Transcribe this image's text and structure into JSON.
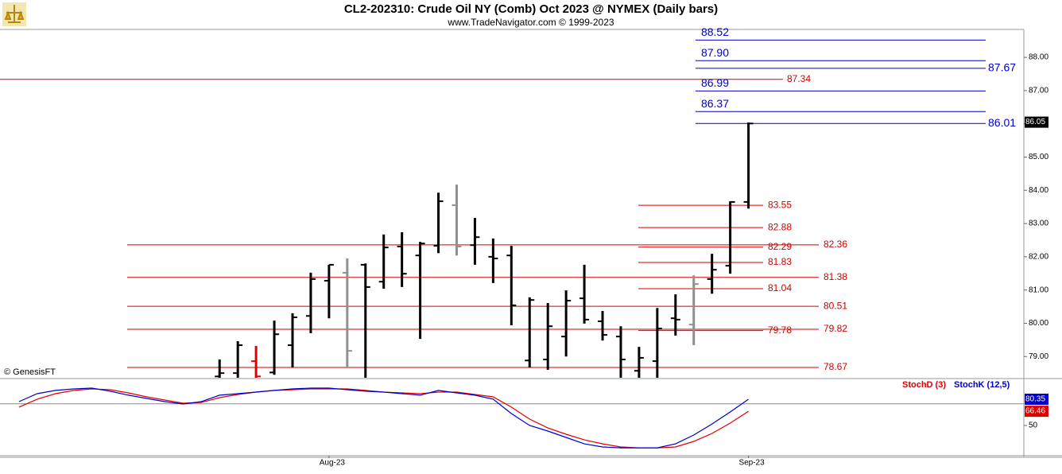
{
  "chart_data": {
    "type": "ohlc",
    "title": "CL2-202310:  Crude Oil NY (Comb) Oct 2023 @ NYMEX  (Daily bars)",
    "subtitle": "www.TradeNavigator.com © 1999-2023",
    "watermark": "© GenesisFT",
    "x": [
      0,
      1,
      2,
      3,
      4,
      5,
      6,
      7,
      8,
      9,
      10,
      11,
      12,
      13,
      14,
      15,
      16,
      17,
      18,
      19,
      20,
      21,
      22,
      23,
      24,
      25,
      26,
      27,
      28,
      29
    ],
    "xlim": [
      -12.04,
      44.1
    ],
    "xticks": [
      {
        "value": 6,
        "label": "Aug-23"
      },
      {
        "value": 29,
        "label": "Sep-23"
      }
    ],
    "ylim": [
      78.36,
      88.84
    ],
    "yticks": [
      {
        "value": 79,
        "label": "79.00"
      },
      {
        "value": 80,
        "label": "80.00"
      },
      {
        "value": 81,
        "label": "81.00"
      },
      {
        "value": 82,
        "label": "82.00"
      },
      {
        "value": 83,
        "label": "83.00"
      },
      {
        "value": 84,
        "label": "84.00"
      },
      {
        "value": 85,
        "label": "85.00"
      },
      {
        "value": 86,
        "label": "86.00"
      },
      {
        "value": 87,
        "label": "87.00"
      },
      {
        "value": 88,
        "label": "88.00"
      }
    ],
    "open": [
      78.4,
      78.5,
      78.86,
      78.52,
      79.34,
      80.22,
      81.28,
      81.52,
      81.76,
      81.25,
      82.31,
      82.04,
      82.33,
      83.55,
      82.35,
      82.0,
      82.04,
      78.88,
      78.91,
      79.6,
      80.75,
      80.06,
      79.6,
      78.57,
      78.86,
      80.15,
      79.96,
      81.33,
      81.73,
      83.65
    ],
    "high": [
      78.91,
      79.46,
      79.32,
      80.08,
      80.3,
      81.52,
      81.76,
      81.95,
      81.8,
      82.67,
      82.74,
      82.45,
      83.93,
      84.17,
      83.17,
      82.55,
      82.33,
      80.78,
      80.61,
      80.99,
      81.76,
      80.37,
      79.91,
      79.29,
      80.46,
      80.87,
      81.44,
      82.09,
      83.67,
      86.04
    ],
    "low": [
      78.2,
      78.2,
      78.2,
      78.45,
      78.67,
      79.7,
      80.15,
      78.67,
      78.2,
      81.04,
      81.09,
      79.53,
      82.11,
      82.04,
      81.76,
      81.21,
      79.94,
      78.67,
      78.6,
      79.0,
      79.99,
      79.48,
      78.2,
      78.2,
      78.2,
      79.63,
      79.34,
      80.89,
      81.49,
      83.45
    ],
    "close": [
      78.5,
      79.34,
      78.4,
      79.67,
      80.18,
      81.33,
      81.76,
      79.17,
      81.09,
      82.28,
      81.49,
      82.4,
      83.67,
      82.31,
      82.59,
      81.95,
      80.54,
      80.7,
      79.91,
      80.68,
      80.11,
      79.65,
      78.91,
      78.96,
      79.84,
      80.11,
      81.18,
      81.61,
      83.65,
      86.01
    ],
    "colors": [
      "#000000",
      "#000000",
      "#e00000",
      "#000000",
      "#000000",
      "#000000",
      "#000000",
      "#909090",
      "#000000",
      "#000000",
      "#000000",
      "#000000",
      "#000000",
      "#909090",
      "#000000",
      "#000000",
      "#000000",
      "#000000",
      "#000000",
      "#000000",
      "#000000",
      "#000000",
      "#000000",
      "#000000",
      "#000000",
      "#000000",
      "#909090",
      "#000000",
      "#000000",
      "#000000"
    ],
    "last_price": 86.05,
    "blue_levels": [
      {
        "value": 88.52,
        "label": "88.52",
        "side": "left"
      },
      {
        "value": 87.9,
        "label": "87.90",
        "side": "left"
      },
      {
        "value": 87.67,
        "label": "87.67",
        "side": "right"
      },
      {
        "value": 86.99,
        "label": "86.99",
        "side": "left"
      },
      {
        "value": 86.37,
        "label": "86.37",
        "side": "left"
      },
      {
        "value": 86.01,
        "label": "86.01",
        "side": "right"
      }
    ],
    "top_red_level": {
      "value": 87.34,
      "label": "87.34"
    },
    "red_levels": [
      {
        "value": 82.36,
        "label": "82.36"
      },
      {
        "value": 81.38,
        "label": "81.38"
      },
      {
        "value": 80.51,
        "label": "80.51"
      },
      {
        "value": 79.82,
        "label": "79.82"
      },
      {
        "value": 78.67,
        "label": "78.67"
      }
    ],
    "short_red_levels": [
      {
        "value": 83.55,
        "label": "83.55"
      },
      {
        "value": 82.88,
        "label": "82.88"
      },
      {
        "value": 82.29,
        "label": "82.29"
      },
      {
        "value": 81.83,
        "label": "81.83"
      },
      {
        "value": 81.04,
        "label": "81.04"
      },
      {
        "value": 79.78,
        "label": "79.78"
      }
    ],
    "stochastic": {
      "x": [
        -11,
        -10,
        -9,
        -8,
        -7,
        -6,
        -5,
        -4,
        -3,
        -2,
        -1,
        0,
        1,
        2,
        3,
        4,
        5,
        6,
        7,
        8,
        9,
        10,
        11,
        12,
        13,
        14,
        15,
        16,
        17,
        18,
        19,
        20,
        21,
        22,
        23,
        24,
        25,
        26,
        27,
        28,
        29
      ],
      "ylim": [
        16,
        102.4
      ],
      "yticks": [
        50
      ],
      "ref_level": 75,
      "series": [
        {
          "name": "StochD (3)",
          "color": "#e00000",
          "last": 66.46,
          "values": [
            71.2,
            80.4,
            86.8,
            90.5,
            92.3,
            91.4,
            87.7,
            83.1,
            79.4,
            75.7,
            76.7,
            82.2,
            85.9,
            88.6,
            90.5,
            91.4,
            92.3,
            92.3,
            92.3,
            90.5,
            88.6,
            87.7,
            86.8,
            88.6,
            88.6,
            85.9,
            83.1,
            71.2,
            57.4,
            47.2,
            39.9,
            33.4,
            28.8,
            25.2,
            24.2,
            24.2,
            25.2,
            31.6,
            40.8,
            52.8,
            66.46
          ]
        },
        {
          "name": "StochK (12,5)",
          "color": "#0000cc",
          "last": 80.35,
          "values": [
            77.6,
            86.8,
            90.5,
            92.3,
            93.2,
            89.6,
            85.0,
            81.3,
            77.6,
            74.8,
            77.6,
            85.0,
            86.8,
            88.6,
            90.5,
            92.3,
            93.2,
            93.2,
            91.4,
            89.6,
            88.6,
            86.8,
            85.0,
            90.5,
            87.7,
            85.0,
            80.4,
            63.8,
            50.0,
            43.6,
            36.2,
            28.8,
            25.2,
            24.2,
            24.2,
            24.2,
            28.8,
            39.0,
            51.8,
            65.6,
            80.35
          ]
        }
      ]
    }
  }
}
